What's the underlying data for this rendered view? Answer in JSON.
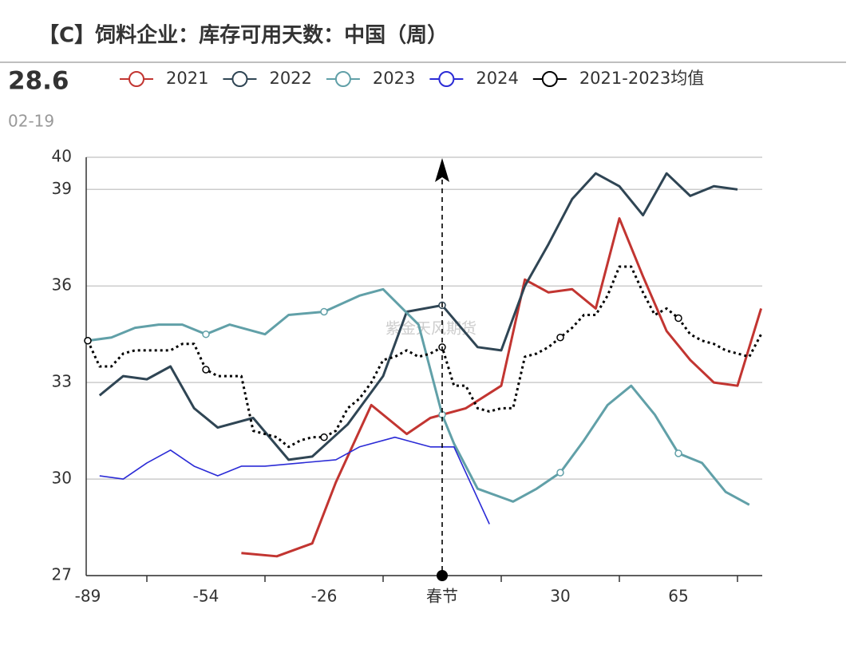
{
  "chart_data": {
    "type": "line",
    "title": "【C】饲料企业：库存可用天数：中国（周）",
    "latest": {
      "value": 28.6,
      "date": "02-19"
    },
    "watermark": "紫金天风期货",
    "categories": [
      "-89",
      null,
      null,
      null,
      null,
      null,
      null,
      null,
      null,
      null,
      "-54",
      null,
      null,
      null,
      null,
      null,
      null,
      null,
      null,
      null,
      "-26",
      null,
      null,
      null,
      null,
      null,
      null,
      null,
      null,
      null,
      "春节",
      null,
      null,
      null,
      null,
      null,
      null,
      null,
      null,
      null,
      "30",
      null,
      null,
      null,
      null,
      null,
      null,
      null,
      null,
      null,
      "65",
      null,
      null,
      null,
      null,
      null,
      null,
      null
    ],
    "ylim": [
      27,
      40
    ],
    "yticks": [
      27,
      30,
      33,
      36,
      39,
      40
    ],
    "grid": true,
    "connect_nulls": true,
    "marker_interval": 10,
    "series": [
      {
        "name": "2021",
        "color": "#c23531",
        "width": 3,
        "dash": "solid",
        "values": [
          null,
          null,
          null,
          null,
          null,
          null,
          null,
          null,
          null,
          null,
          null,
          null,
          null,
          27.7,
          null,
          null,
          27.6,
          null,
          null,
          28.0,
          null,
          29.9,
          null,
          null,
          32.3,
          null,
          null,
          31.4,
          null,
          31.9,
          null,
          null,
          32.2,
          null,
          null,
          32.9,
          null,
          36.2,
          null,
          35.8,
          null,
          35.9,
          null,
          35.3,
          null,
          38.1,
          null,
          36.3,
          null,
          34.6,
          null,
          33.7,
          null,
          33.0,
          null,
          32.9,
          null,
          35.3
        ]
      },
      {
        "name": "2022",
        "color": "#2f4554",
        "width": 3,
        "dash": "solid",
        "values": [
          null,
          32.6,
          null,
          33.2,
          null,
          33.1,
          null,
          33.5,
          null,
          32.2,
          null,
          31.6,
          null,
          null,
          31.9,
          null,
          null,
          30.6,
          null,
          30.7,
          null,
          null,
          31.7,
          null,
          null,
          33.2,
          null,
          35.2,
          null,
          null,
          35.4,
          null,
          null,
          34.1,
          null,
          34.0,
          null,
          36.0,
          null,
          37.3,
          null,
          38.7,
          null,
          39.5,
          null,
          39.1,
          null,
          38.2,
          null,
          39.5,
          null,
          38.8,
          null,
          39.1,
          null,
          39.0,
          null,
          null
        ]
      },
      {
        "name": "2023",
        "color": "#61a0a8",
        "width": 3,
        "dash": "solid",
        "values": [
          34.3,
          null,
          34.4,
          null,
          34.7,
          null,
          34.8,
          null,
          34.8,
          null,
          34.5,
          null,
          34.8,
          null,
          null,
          34.5,
          null,
          35.1,
          null,
          null,
          35.2,
          null,
          null,
          35.7,
          null,
          35.9,
          null,
          null,
          34.8,
          null,
          32.0,
          31.1,
          null,
          29.7,
          null,
          null,
          29.3,
          null,
          29.7,
          null,
          30.2,
          null,
          31.2,
          null,
          32.3,
          null,
          32.9,
          null,
          32.0,
          null,
          30.8,
          null,
          30.5,
          null,
          29.6,
          null,
          29.2,
          null
        ]
      },
      {
        "name": "2024",
        "color": "#2b2bd6",
        "width": 1.6,
        "dash": "solid",
        "values": [
          null,
          30.1,
          null,
          30.0,
          null,
          30.5,
          null,
          30.9,
          null,
          30.4,
          null,
          30.1,
          null,
          30.4,
          null,
          30.4,
          null,
          null,
          30.5,
          null,
          null,
          30.6,
          null,
          31.0,
          null,
          null,
          31.3,
          null,
          null,
          31.0,
          null,
          31.0,
          null,
          null,
          28.6,
          null,
          null,
          null,
          null,
          null,
          null,
          null,
          null,
          null,
          null,
          null,
          null,
          null,
          null,
          null,
          null,
          null,
          null,
          null,
          null,
          null,
          null,
          null
        ]
      },
      {
        "name": "2021-2023均值",
        "color": "#000000",
        "width": 3,
        "dash": "dotted",
        "values": [
          34.3,
          33.5,
          33.5,
          33.9,
          34.0,
          34.0,
          34.0,
          34.0,
          34.2,
          34.2,
          33.4,
          33.2,
          33.2,
          33.2,
          31.5,
          31.4,
          31.3,
          31.0,
          31.2,
          31.3,
          31.3,
          31.5,
          32.2,
          32.5,
          33.0,
          33.7,
          33.8,
          34.0,
          33.8,
          33.9,
          34.1,
          32.9,
          32.9,
          32.2,
          32.1,
          32.2,
          32.2,
          33.8,
          33.9,
          34.1,
          34.4,
          34.7,
          35.1,
          35.1,
          35.7,
          36.6,
          36.6,
          35.8,
          35.1,
          35.3,
          35.0,
          34.5,
          34.3,
          34.2,
          34.0,
          33.9,
          33.8,
          34.5
        ]
      }
    ]
  }
}
